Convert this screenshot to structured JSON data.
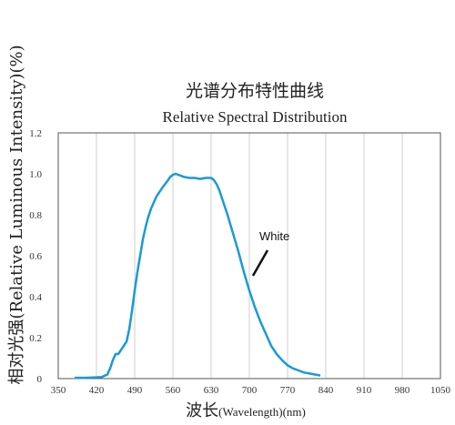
{
  "chart_data": {
    "type": "line",
    "title": "光谱分布特性曲线",
    "subtitle": "Relative Spectral Distribution",
    "xlabel_main": "波长",
    "xlabel_paren1": "(Wavelength)",
    "xlabel_paren2": "(nm)",
    "ylabel": "相对光强(Relative Luminous Intensity)(%)",
    "xlim": [
      350,
      1050
    ],
    "ylim": [
      0,
      1.2
    ],
    "x_ticks": [
      350,
      420,
      490,
      560,
      630,
      700,
      770,
      840,
      910,
      980,
      1050
    ],
    "y_ticks": [
      0,
      0.2,
      0.4,
      0.6,
      0.8,
      1.0,
      1.2
    ],
    "y_tick_labels": [
      "0",
      "0.2",
      "0.4",
      "0.6",
      "0.8",
      "1.0",
      "1.2"
    ],
    "grid": "vertical",
    "series": [
      {
        "name": "White",
        "color": "#1a9ad6",
        "x": [
          380,
          390,
          400,
          410,
          420,
          430,
          440,
          445,
          450,
          455,
          460,
          465,
          470,
          475,
          480,
          485,
          490,
          495,
          500,
          505,
          510,
          515,
          520,
          525,
          530,
          540,
          550,
          555,
          560,
          565,
          570,
          575,
          580,
          590,
          600,
          610,
          620,
          630,
          635,
          640,
          645,
          650,
          660,
          670,
          680,
          690,
          700,
          710,
          720,
          730,
          740,
          750,
          760,
          770,
          780,
          790,
          800,
          810,
          820,
          830
        ],
        "y": [
          0.004,
          0.004,
          0.004,
          0.005,
          0.006,
          0.008,
          0.02,
          0.05,
          0.09,
          0.12,
          0.12,
          0.14,
          0.16,
          0.18,
          0.24,
          0.33,
          0.43,
          0.52,
          0.6,
          0.68,
          0.74,
          0.79,
          0.83,
          0.86,
          0.89,
          0.93,
          0.965,
          0.985,
          0.995,
          1.0,
          0.995,
          0.99,
          0.985,
          0.98,
          0.98,
          0.975,
          0.98,
          0.98,
          0.97,
          0.95,
          0.92,
          0.88,
          0.8,
          0.71,
          0.62,
          0.52,
          0.43,
          0.35,
          0.28,
          0.22,
          0.16,
          0.12,
          0.09,
          0.065,
          0.05,
          0.04,
          0.03,
          0.025,
          0.02,
          0.015
        ]
      }
    ],
    "annotation": "White"
  }
}
